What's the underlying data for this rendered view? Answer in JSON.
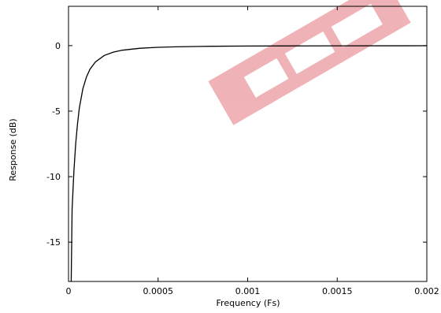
{
  "chart_data": {
    "type": "line",
    "title": "",
    "xlabel": "Frequency (Fs)",
    "ylabel": "Response (dB)",
    "xlim": [
      0,
      0.002
    ],
    "ylim": [
      -18,
      3
    ],
    "x_ticks": [
      "0",
      "0.0005",
      "0.001",
      "0.0015",
      "0.002"
    ],
    "x_tick_values": [
      0,
      0.0005,
      0.001,
      0.0015,
      0.002
    ],
    "y_ticks": [
      "0",
      "-5",
      "-10",
      "-15"
    ],
    "y_tick_values": [
      0,
      -5,
      -10,
      -15
    ],
    "grid": false,
    "series": [
      {
        "color": "#000000",
        "x": [
          1.5e-05,
          2e-05,
          3e-05,
          4e-05,
          5e-05,
          6e-05,
          8e-05,
          0.0001,
          0.00012,
          0.00015,
          0.0002,
          0.00025,
          0.0003,
          0.0004,
          0.0005,
          0.0006,
          0.0008,
          0.001,
          0.0015,
          0.002
        ],
        "y": [
          -18,
          -12.5,
          -9.6,
          -7.5,
          -6.0,
          -4.8,
          -3.3,
          -2.4,
          -1.8,
          -1.25,
          -0.75,
          -0.5,
          -0.35,
          -0.2,
          -0.13,
          -0.09,
          -0.05,
          -0.03,
          -0.015,
          -0.01
        ]
      }
    ]
  },
  "watermark": {
    "color": "#e8888f"
  }
}
